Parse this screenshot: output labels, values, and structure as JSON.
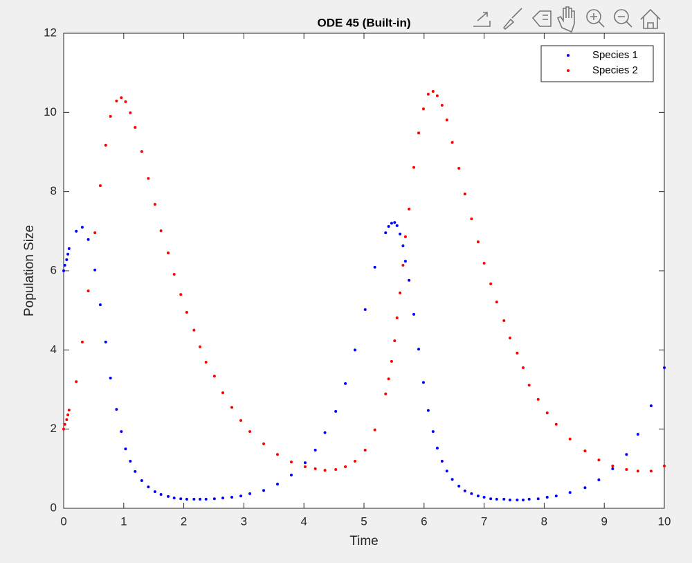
{
  "chart_data": {
    "type": "scatter",
    "title": "ODE 45 (Built-in)",
    "x_label": "Time",
    "y_label": "Population Size",
    "x": [
      0,
      0.02,
      0.05,
      0.07,
      0.09,
      0.21,
      0.31,
      0.41,
      0.52,
      0.61,
      0.7,
      0.78,
      0.88,
      0.96,
      1.03,
      1.11,
      1.19,
      1.3,
      1.41,
      1.52,
      1.62,
      1.74,
      1.84,
      1.95,
      2.05,
      2.17,
      2.27,
      2.37,
      2.51,
      2.65,
      2.8,
      2.95,
      3.1,
      3.33,
      3.56,
      3.79,
      4.02,
      4.19,
      4.35,
      4.53,
      4.69,
      4.85,
      5.02,
      5.18,
      5.36,
      5.41,
      5.46,
      5.51,
      5.55,
      5.6,
      5.65,
      5.69,
      5.75,
      5.83,
      5.91,
      5.99,
      6.07,
      6.15,
      6.22,
      6.3,
      6.38,
      6.47,
      6.58,
      6.68,
      6.79,
      6.9,
      7.0,
      7.11,
      7.21,
      7.33,
      7.43,
      7.55,
      7.65,
      7.75,
      7.9,
      8.05,
      8.2,
      8.43,
      8.68,
      8.91,
      9.14,
      9.37,
      9.56,
      9.78,
      10.0
    ],
    "series": [
      {
        "name": "Species 1",
        "color": "#0000ff",
        "values": [
          6.0,
          6.14,
          6.28,
          6.42,
          6.56,
          7.0,
          7.1,
          6.79,
          6.02,
          5.14,
          4.2,
          3.29,
          2.5,
          1.94,
          1.5,
          1.19,
          0.93,
          0.7,
          0.54,
          0.42,
          0.35,
          0.3,
          0.26,
          0.24,
          0.23,
          0.23,
          0.23,
          0.23,
          0.24,
          0.26,
          0.28,
          0.31,
          0.37,
          0.45,
          0.61,
          0.84,
          1.15,
          1.47,
          1.91,
          2.45,
          3.15,
          4.0,
          5.02,
          6.09,
          6.96,
          7.12,
          7.2,
          7.22,
          7.14,
          6.93,
          6.63,
          6.24,
          5.76,
          4.9,
          4.02,
          3.18,
          2.47,
          1.94,
          1.52,
          1.19,
          0.94,
          0.73,
          0.56,
          0.44,
          0.37,
          0.31,
          0.28,
          0.24,
          0.23,
          0.23,
          0.21,
          0.21,
          0.21,
          0.23,
          0.24,
          0.28,
          0.31,
          0.4,
          0.52,
          0.72,
          1.0,
          1.36,
          1.87,
          2.59,
          3.55
        ]
      },
      {
        "name": "Species 2",
        "color": "#ff0000",
        "values": [
          2.0,
          2.12,
          2.24,
          2.36,
          2.48,
          3.2,
          4.2,
          5.49,
          6.96,
          8.15,
          9.17,
          9.9,
          10.29,
          10.37,
          10.27,
          9.99,
          9.62,
          9.01,
          8.33,
          7.68,
          7.01,
          6.45,
          5.91,
          5.4,
          4.95,
          4.5,
          4.08,
          3.69,
          3.34,
          2.92,
          2.55,
          2.22,
          1.94,
          1.63,
          1.36,
          1.17,
          1.05,
          1.0,
          0.96,
          0.98,
          1.05,
          1.19,
          1.47,
          1.98,
          2.89,
          3.27,
          3.71,
          4.23,
          4.81,
          5.44,
          6.14,
          6.86,
          7.56,
          8.61,
          9.48,
          10.09,
          10.46,
          10.53,
          10.42,
          10.18,
          9.81,
          9.24,
          8.59,
          7.94,
          7.31,
          6.73,
          6.19,
          5.67,
          5.21,
          4.74,
          4.3,
          3.92,
          3.55,
          3.11,
          2.75,
          2.41,
          2.12,
          1.75,
          1.45,
          1.22,
          1.07,
          0.98,
          0.94,
          0.94,
          1.07
        ]
      }
    ],
    "xlim": [
      0,
      10
    ],
    "xticks": [
      0,
      1,
      2,
      3,
      4,
      5,
      6,
      7,
      8,
      9,
      10
    ],
    "ylim": [
      0,
      12
    ],
    "yticks": [
      0,
      2,
      4,
      6,
      8,
      10,
      12
    ],
    "grid": false,
    "legend": "northeast"
  }
}
